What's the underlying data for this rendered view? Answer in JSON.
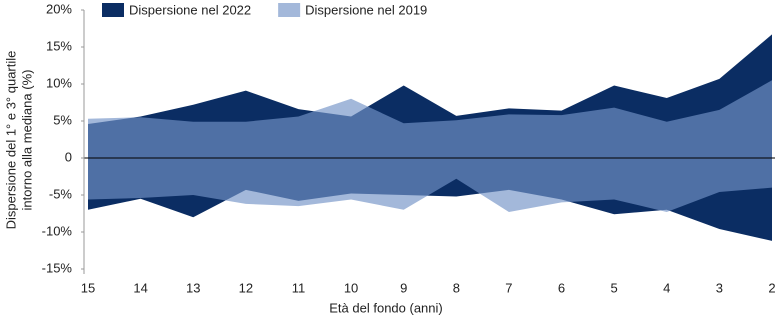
{
  "chart_data": {
    "type": "band",
    "x_label": "Età del fondo (anni)",
    "y_label": [
      "Dispersione del 1° e 3° quartile",
      "intorno alla mediana (%)"
    ],
    "categories": [
      "15",
      "14",
      "13",
      "12",
      "11",
      "10",
      "9",
      "8",
      "7",
      "6",
      "5",
      "4",
      "3",
      "2"
    ],
    "series": [
      {
        "name": "Dispersione nel 2022",
        "color": "#0b2d63",
        "opacity": 1,
        "high": [
          4.6,
          5.6,
          7.2,
          9.1,
          6.6,
          5.6,
          9.8,
          5.7,
          6.7,
          6.4,
          9.8,
          8.1,
          10.7,
          16.7
        ],
        "low": [
          -7,
          -5.5,
          -8,
          -4.3,
          -5.8,
          -4.8,
          -5,
          -5.2,
          -4.3,
          -5.6,
          -7.6,
          -7,
          -9.6,
          -11.2
        ]
      },
      {
        "name": "Dispersione nel 2019",
        "color": "#7493c7",
        "opacity": 0.66,
        "high": [
          5.3,
          5.5,
          4.9,
          4.9,
          5.6,
          8,
          4.7,
          5.1,
          5.9,
          5.8,
          6.8,
          4.9,
          6.5,
          10.5
        ],
        "low": [
          -5.6,
          -5.4,
          -5,
          -6.2,
          -6.5,
          -5.6,
          -7,
          -2.8,
          -7.3,
          -6,
          -5.6,
          -7.3,
          -4.6,
          -4
        ]
      }
    ],
    "ylim": [
      -15,
      20
    ],
    "yticks": [
      {
        "value": -15,
        "label": "-15%"
      },
      {
        "value": -10,
        "label": "-10%"
      },
      {
        "value": -5,
        "label": "-5%"
      },
      0,
      {
        "value": 5,
        "label": "5%"
      },
      {
        "value": 10,
        "label": "10%"
      },
      {
        "value": 15,
        "label": "15%"
      },
      {
        "value": 20,
        "label": "20%"
      }
    ],
    "zero_line": true
  }
}
